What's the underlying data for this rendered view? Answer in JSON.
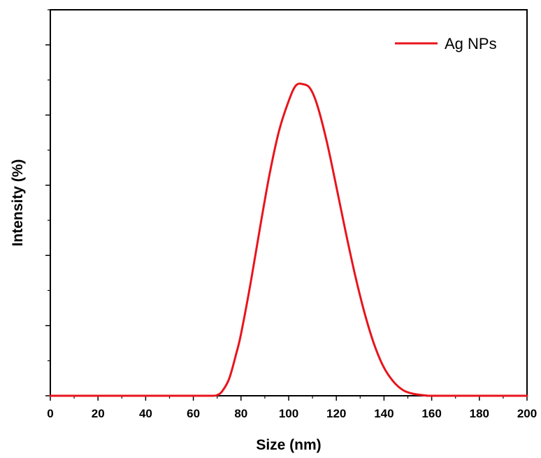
{
  "chart_data": {
    "type": "line",
    "title": "",
    "xlabel": "Size (nm)",
    "ylabel": "Intensity (%)",
    "xlim": [
      0,
      200
    ],
    "ylim": [
      0,
      27.5
    ],
    "x_ticks": [
      0,
      20,
      40,
      60,
      80,
      100,
      120,
      140,
      160,
      180,
      200
    ],
    "y_tick_labels_shown": false,
    "grid": false,
    "legend": {
      "position": "top-right"
    },
    "series": [
      {
        "name": "Ag NPs",
        "color": "#e8141c",
        "x": [
          0,
          20,
          40,
          60,
          68,
          70,
          72,
          75,
          78,
          80,
          84,
          88,
          92,
          96,
          100,
          103,
          106,
          109,
          112,
          116,
          120,
          124,
          128,
          132,
          136,
          140,
          144,
          148,
          152,
          156,
          158,
          160,
          180,
          200
        ],
        "y": [
          0,
          0,
          0,
          0,
          0,
          0.05,
          0.3,
          1.2,
          3.0,
          4.4,
          8.0,
          12.0,
          15.8,
          18.9,
          21.0,
          22.1,
          22.2,
          21.9,
          20.7,
          18.1,
          14.9,
          11.6,
          8.5,
          5.8,
          3.6,
          2.0,
          1.0,
          0.4,
          0.15,
          0.05,
          0.01,
          0,
          0,
          0
        ]
      }
    ]
  }
}
